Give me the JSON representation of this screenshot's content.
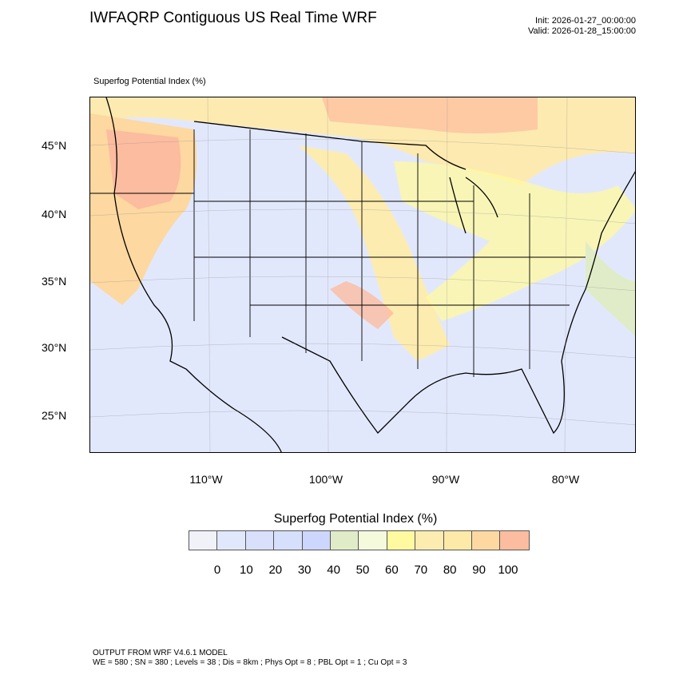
{
  "header": {
    "title": "IWFAQRP Contiguous US Real Time WRF",
    "init": "Init: 2026-01-27_00:00:00",
    "valid": "Valid: 2026-01-28_15:00:00",
    "variable": "Superfog Potential Index   (%)"
  },
  "map": {
    "lat_labels": [
      "45°N",
      "40°N",
      "35°N",
      "30°N",
      "25°N"
    ],
    "lon_labels": [
      "110°W",
      "100°W",
      "90°W",
      "80°W"
    ]
  },
  "colorbar": {
    "title": "Superfog Potential Index  (%)",
    "colors": [
      "#f0f2f8",
      "#e2e8fc",
      "#d8e0fc",
      "#d6e0fc",
      "#cdd6fc",
      "#e0ecc8",
      "#f6fadc",
      "#fffaa0",
      "#fdecb0",
      "#feeaa8",
      "#fdd8a0",
      "#fcbca0"
    ],
    "labels": [
      "0",
      "10",
      "20",
      "30",
      "40",
      "50",
      "60",
      "70",
      "80",
      "90",
      "100"
    ]
  },
  "footer": {
    "line1": "OUTPUT FROM WRF V4.6.1 MODEL",
    "line2": "WE = 580 ; SN = 380 ; Levels = 38 ; Dis = 8km ; Phys Opt = 8 ; PBL Opt = 1 ; Cu Opt = 3"
  }
}
